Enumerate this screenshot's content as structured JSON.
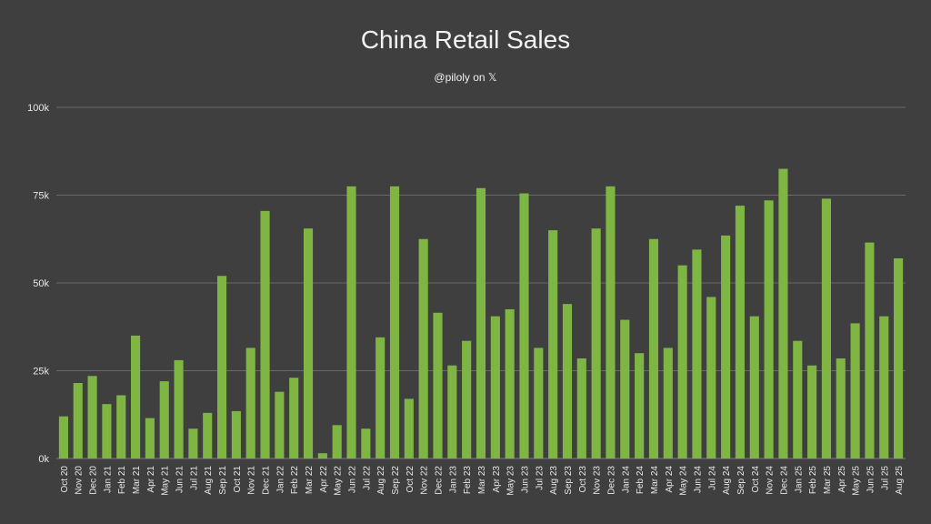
{
  "chart_data": {
    "type": "bar",
    "title": "China Retail Sales",
    "subtitle": "@piloly on 𝕏",
    "xlabel": "",
    "ylabel": "",
    "ylim": [
      0,
      100000
    ],
    "y_ticks": [
      0,
      25000,
      50000,
      75000,
      100000
    ],
    "y_tick_labels": [
      "0k",
      "25k",
      "50k",
      "75k",
      "100k"
    ],
    "grid": true,
    "legend": "none",
    "colors": {
      "bar": "#7fb543",
      "background": "#3f3f3f",
      "grid": "#6a6a6a",
      "text": "#e8e8e8"
    },
    "categories": [
      "Oct 20",
      "Nov 20",
      "Dec 20",
      "Jan 21",
      "Feb 21",
      "Mar 21",
      "Apr 21",
      "May 21",
      "Jun 21",
      "Jul 21",
      "Aug 21",
      "Sep 21",
      "Oct 21",
      "Nov 21",
      "Dec 21",
      "Jan 22",
      "Feb 22",
      "Mar 22",
      "Apr 22",
      "May 22",
      "Jun 22",
      "Jul 22",
      "Aug 22",
      "Sep 22",
      "Oct 22",
      "Nov 22",
      "Dec 22",
      "Jan 23",
      "Feb 23",
      "Mar 23",
      "Apr 23",
      "May 23",
      "Jun 23",
      "Jul 23",
      "Aug 23",
      "Sep 23",
      "Oct 23",
      "Nov 23",
      "Dec 23",
      "Jan 24",
      "Feb 24",
      "Mar 24",
      "Apr 24",
      "May 24",
      "Jun 24",
      "Jul 24",
      "Aug 24",
      "Sep 24",
      "Oct 24",
      "Nov 24",
      "Dec 24",
      "Jan 25",
      "Feb 25",
      "Mar 25",
      "Apr 25",
      "May 25",
      "Jun 25",
      "Jul 25",
      "Aug 25"
    ],
    "values": [
      12000,
      21500,
      23500,
      15500,
      18000,
      35000,
      11500,
      22000,
      28000,
      8500,
      13000,
      52000,
      13500,
      31500,
      70500,
      19000,
      23000,
      65500,
      1500,
      9500,
      77500,
      8500,
      34500,
      77500,
      17000,
      62500,
      41500,
      26500,
      33500,
      77000,
      40500,
      42500,
      75500,
      31500,
      65000,
      44000,
      28500,
      65500,
      77500,
      39500,
      30000,
      62500,
      31500,
      55000,
      59500,
      46000,
      63500,
      72000,
      40500,
      73500,
      82500,
      33500,
      26500,
      74000,
      28500,
      38500,
      61500,
      40500,
      57000
    ]
  }
}
